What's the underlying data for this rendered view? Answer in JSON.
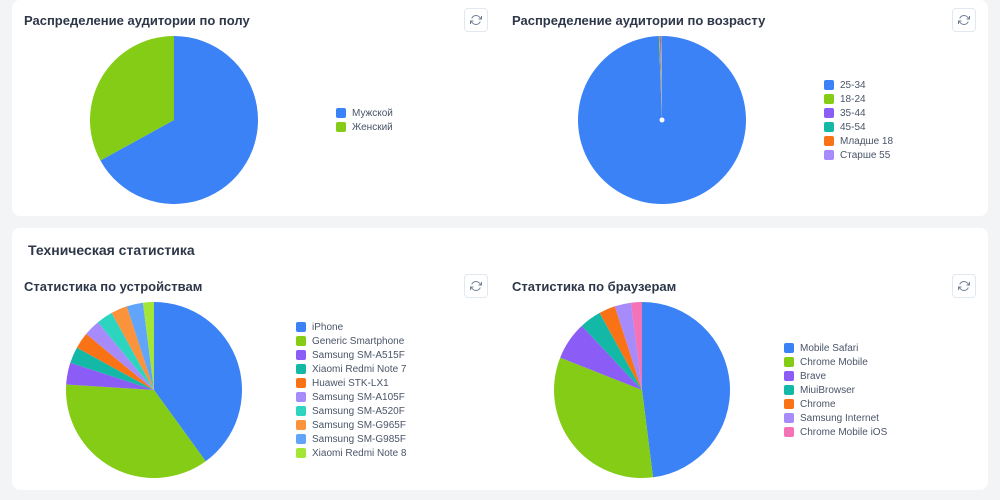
{
  "background_color": "#f3f4f6",
  "card_background": "#ffffff",
  "text_color": "#2d3748",
  "legend_text_color": "#4a5568",
  "title_fontsize": 13,
  "legend_fontsize": 10,
  "refresh_icon_name": "refresh-icon",
  "top_card": {
    "gender_chart": {
      "title": "Распределение аудитории по полу",
      "type": "pie",
      "radius": 84,
      "center_dot": false,
      "slices": [
        {
          "label": "Мужской",
          "value": 67,
          "color": "#3b82f6"
        },
        {
          "label": "Женский",
          "value": 33,
          "color": "#84cc16"
        }
      ]
    },
    "age_chart": {
      "title": "Распределение аудитории по возрасту",
      "type": "pie",
      "radius": 84,
      "center_dot": true,
      "center_dot_color": "#ffffff",
      "slices": [
        {
          "label": "25-34",
          "value": 99.4,
          "color": "#3b82f6"
        },
        {
          "label": "18-24",
          "value": 0.15,
          "color": "#84cc16"
        },
        {
          "label": "35-44",
          "value": 0.15,
          "color": "#8b5cf6"
        },
        {
          "label": "45-54",
          "value": 0.1,
          "color": "#14b8a6"
        },
        {
          "label": "Младше 18",
          "value": 0.1,
          "color": "#f97316"
        },
        {
          "label": "Старше 55",
          "value": 0.1,
          "color": "#a78bfa"
        }
      ]
    }
  },
  "bottom_card": {
    "section_title": "Техническая статистика",
    "devices_chart": {
      "title": "Статистика по устройствам",
      "type": "pie",
      "radius": 88,
      "center_dot": false,
      "slices": [
        {
          "label": "iPhone",
          "value": 40,
          "color": "#3b82f6"
        },
        {
          "label": "Generic Smartphone",
          "value": 36,
          "color": "#84cc16"
        },
        {
          "label": "Samsung SM-A515F",
          "value": 4,
          "color": "#8b5cf6"
        },
        {
          "label": "Xiaomi Redmi Note 7",
          "value": 3,
          "color": "#14b8a6"
        },
        {
          "label": "Huawei STK-LX1",
          "value": 3,
          "color": "#f97316"
        },
        {
          "label": "Samsung SM-A105F",
          "value": 3,
          "color": "#a78bfa"
        },
        {
          "label": "Samsung SM-A520F",
          "value": 3,
          "color": "#2dd4bf"
        },
        {
          "label": "Samsung SM-G965F",
          "value": 3,
          "color": "#fb923c"
        },
        {
          "label": "Samsung SM-G985F",
          "value": 3,
          "color": "#60a5fa"
        },
        {
          "label": "Xiaomi Redmi Note 8",
          "value": 2,
          "color": "#a3e635"
        }
      ]
    },
    "browsers_chart": {
      "title": "Статистика по браузерам",
      "type": "pie",
      "radius": 88,
      "center_dot": false,
      "slices": [
        {
          "label": "Mobile Safari",
          "value": 48,
          "color": "#3b82f6"
        },
        {
          "label": "Chrome Mobile",
          "value": 33,
          "color": "#84cc16"
        },
        {
          "label": "Brave",
          "value": 7,
          "color": "#8b5cf6"
        },
        {
          "label": "MiuiBrowser",
          "value": 4,
          "color": "#14b8a6"
        },
        {
          "label": "Chrome",
          "value": 3,
          "color": "#f97316"
        },
        {
          "label": "Samsung Internet",
          "value": 3,
          "color": "#a78bfa"
        },
        {
          "label": "Chrome Mobile iOS",
          "value": 2,
          "color": "#f472b6"
        }
      ]
    }
  }
}
